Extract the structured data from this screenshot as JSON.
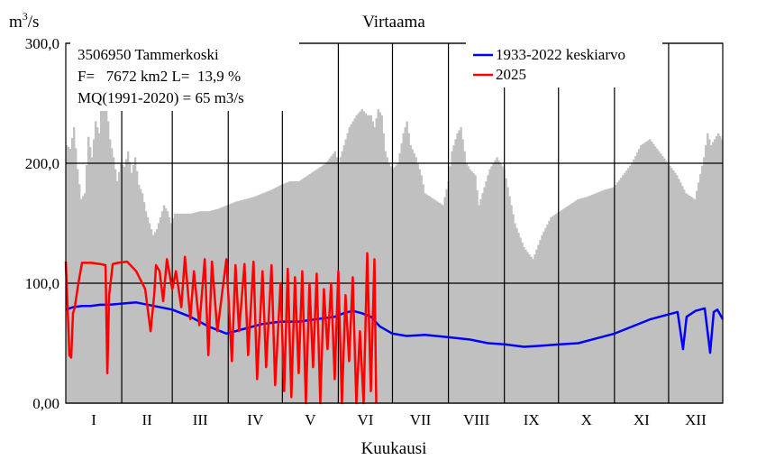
{
  "chart_data": {
    "type": "line",
    "title": "Virtaama",
    "ylabel": "m3/s",
    "xlabel": "Kuukausi",
    "ylim": [
      0,
      300
    ],
    "y_ticks": [
      "0,00",
      "100,0",
      "200,0",
      "300,0"
    ],
    "y_tick_values": [
      0,
      100,
      200,
      300
    ],
    "x_days": 365,
    "months": [
      "I",
      "II",
      "III",
      "IV",
      "V",
      "VI",
      "VII",
      "VIII",
      "IX",
      "X",
      "XI",
      "XII"
    ],
    "month_starts_doy": [
      1,
      32,
      60,
      91,
      121,
      152,
      182,
      213,
      244,
      274,
      305,
      335
    ],
    "grid": true,
    "info_lines": [
      "3506950 Tammerkoski",
      "F=   7672 km2 L=  13,9 %",
      "MQ(1991-2020) = 65 m3/s"
    ],
    "legend_position": "top-right",
    "colors": {
      "band": "#c0c0c0",
      "mean": "#0000ff",
      "current": "#ff0000"
    },
    "series": [
      {
        "name": "1933-2022 keskiarvo",
        "kind": "line",
        "x": [
          1,
          5,
          10,
          15,
          20,
          25,
          32,
          40,
          50,
          60,
          70,
          80,
          90,
          100,
          110,
          120,
          130,
          140,
          150,
          155,
          160,
          165,
          170,
          175,
          182,
          190,
          200,
          213,
          225,
          235,
          244,
          255,
          265,
          275,
          285,
          295,
          305,
          315,
          325,
          335,
          340,
          343,
          345,
          350,
          355,
          358,
          360,
          362,
          365
        ],
        "values": [
          78,
          80,
          81,
          81,
          82,
          82,
          83,
          84,
          81,
          78,
          72,
          64,
          58,
          62,
          66,
          68,
          68,
          70,
          72,
          75,
          77,
          75,
          72,
          64,
          58,
          56,
          57,
          55,
          53,
          50,
          49,
          47,
          48,
          49,
          50,
          54,
          58,
          64,
          70,
          74,
          76,
          45,
          72,
          77,
          79,
          42,
          76,
          78,
          70
        ]
      },
      {
        "name": "2025",
        "kind": "line",
        "x": [
          1,
          2,
          3,
          4,
          5,
          6,
          8,
          10,
          15,
          20,
          23,
          24,
          25,
          27,
          30,
          35,
          40,
          45,
          48,
          50,
          51,
          53,
          55,
          57,
          60,
          62,
          65,
          67,
          70,
          72,
          75,
          78,
          80,
          82,
          85,
          90,
          93,
          95,
          97,
          100,
          102,
          105,
          107,
          110,
          112,
          115,
          117,
          120,
          122,
          124,
          126,
          128,
          130,
          132,
          134,
          136,
          138,
          140,
          142,
          144,
          146,
          148,
          150,
          152,
          154,
          156,
          158,
          160,
          162,
          164,
          166,
          168,
          170,
          172,
          173
        ],
        "values": [
          118,
          80,
          40,
          38,
          75,
          80,
          100,
          117,
          117,
          116,
          115,
          25,
          90,
          116,
          117,
          118,
          110,
          95,
          60,
          90,
          115,
          110,
          85,
          120,
          95,
          110,
          80,
          122,
          70,
          110,
          65,
          120,
          40,
          118,
          60,
          120,
          35,
          115,
          60,
          116,
          40,
          118,
          20,
          110,
          30,
          115,
          15,
          100,
          10,
          112,
          5,
          105,
          25,
          110,
          0,
          100,
          30,
          108,
          0,
          95,
          45,
          100,
          20,
          110,
          0,
          90,
          35,
          105,
          0,
          60,
          0,
          125,
          10,
          120,
          0
        ]
      },
      {
        "name": "",
        "kind": "band",
        "x": [
          1,
          3,
          5,
          7,
          9,
          11,
          13,
          15,
          17,
          19,
          21,
          23,
          25,
          27,
          29,
          31,
          33,
          35,
          37,
          39,
          41,
          43,
          45,
          47,
          49,
          51,
          53,
          55,
          57,
          59,
          61,
          65,
          70,
          75,
          80,
          85,
          90,
          95,
          100,
          105,
          110,
          115,
          120,
          125,
          130,
          135,
          140,
          145,
          150,
          152,
          155,
          158,
          160,
          162,
          165,
          168,
          170,
          172,
          174,
          176,
          178,
          180,
          182,
          185,
          188,
          190,
          192,
          195,
          198,
          200,
          205,
          210,
          213,
          215,
          218,
          220,
          223,
          225,
          228,
          230,
          233,
          236,
          240,
          244,
          250,
          255,
          260,
          265,
          270,
          275,
          280,
          285,
          290,
          295,
          300,
          305,
          310,
          315,
          320,
          325,
          330,
          335,
          340,
          345,
          350,
          355,
          357,
          359,
          361,
          363,
          365
        ],
        "values": [
          215,
          212,
          230,
          195,
          170,
          175,
          222,
          205,
          235,
          225,
          265,
          250,
          220,
          205,
          185,
          200,
          197,
          210,
          192,
          205,
          182,
          175,
          160,
          150,
          140,
          145,
          155,
          165,
          160,
          150,
          158,
          158,
          158,
          160,
          160,
          162,
          165,
          168,
          170,
          172,
          175,
          178,
          182,
          185,
          185,
          190,
          195,
          200,
          210,
          200,
          215,
          230,
          235,
          240,
          245,
          240,
          240,
          230,
          245,
          240,
          210,
          200,
          195,
          200,
          225,
          235,
          215,
          205,
          190,
          175,
          170,
          165,
          185,
          210,
          225,
          230,
          200,
          195,
          190,
          165,
          180,
          195,
          205,
          195,
          150,
          130,
          120,
          140,
          155,
          160,
          165,
          170,
          172,
          175,
          178,
          180,
          190,
          200,
          215,
          220,
          210,
          200,
          190,
          175,
          170,
          205,
          225,
          215,
          220,
          225,
          220
        ]
      }
    ]
  }
}
